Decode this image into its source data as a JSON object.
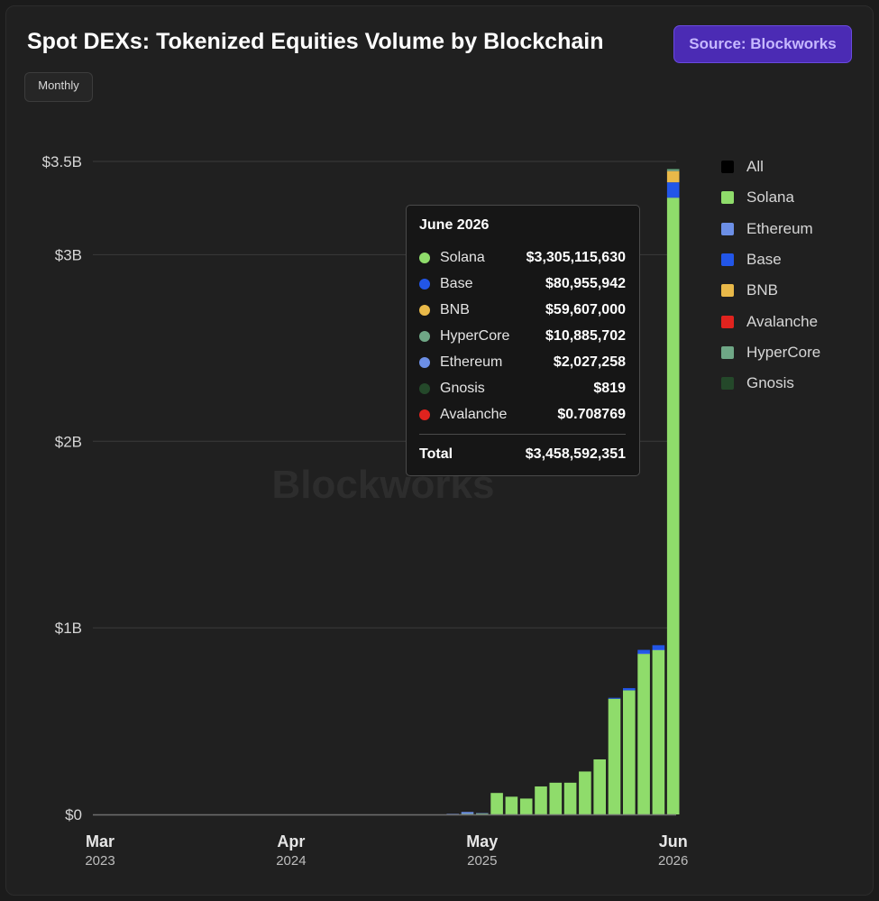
{
  "header": {
    "title": "Spot DEXs: Tokenized Equities Volume by Blockchain",
    "source_label": "Source: Blockworks",
    "interval_label": "Monthly"
  },
  "watermark": "Blockworks",
  "legend": [
    {
      "label": "All",
      "color": "#000000"
    },
    {
      "label": "Solana",
      "color": "#8fdc6b"
    },
    {
      "label": "Ethereum",
      "color": "#6c8fe6"
    },
    {
      "label": "Base",
      "color": "#2256e8"
    },
    {
      "label": "BNB",
      "color": "#e9b949"
    },
    {
      "label": "Avalanche",
      "color": "#e0231e"
    },
    {
      "label": "HyperCore",
      "color": "#6fa786"
    },
    {
      "label": "Gnosis",
      "color": "#24482a"
    }
  ],
  "tooltip": {
    "title": "June 2026",
    "rows": [
      {
        "name": "Solana",
        "value": "$3,305,115,630",
        "color": "#8fdc6b"
      },
      {
        "name": "Base",
        "value": "$80,955,942",
        "color": "#2256e8"
      },
      {
        "name": "BNB",
        "value": "$59,607,000",
        "color": "#e9b949"
      },
      {
        "name": "HyperCore",
        "value": "$10,885,702",
        "color": "#6fa786"
      },
      {
        "name": "Ethereum",
        "value": "$2,027,258",
        "color": "#6c8fe6"
      },
      {
        "name": "Gnosis",
        "value": "$819",
        "color": "#24482a"
      },
      {
        "name": "Avalanche",
        "value": "$0.708769",
        "color": "#e0231e"
      }
    ],
    "total_label": "Total",
    "total_value": "$3,458,592,351"
  },
  "chart_data": {
    "type": "bar",
    "stacked": true,
    "title": "Spot DEXs: Tokenized Equities Volume by Blockchain",
    "xlabel": "",
    "ylabel": "",
    "ylim": [
      0,
      3500000000
    ],
    "y_ticks": [
      0,
      1000000000,
      2000000000,
      3000000000,
      3500000000
    ],
    "y_tick_labels": [
      "$0",
      "$1B",
      "$2B",
      "$3B",
      "$3.5B"
    ],
    "x_ticks": [
      {
        "index": 0,
        "month": "Mar",
        "year": "2023"
      },
      {
        "index": 13,
        "month": "Apr",
        "year": "2024"
      },
      {
        "index": 26,
        "month": "May",
        "year": "2025"
      },
      {
        "index": 39,
        "month": "Jun",
        "year": "2026"
      }
    ],
    "grid": true,
    "legend_position": "right",
    "categories": [
      "Mar 2023",
      "Apr 2023",
      "May 2023",
      "Jun 2023",
      "Jul 2023",
      "Aug 2023",
      "Sep 2023",
      "Oct 2023",
      "Nov 2023",
      "Dec 2023",
      "Jan 2024",
      "Feb 2024",
      "Mar 2024",
      "Apr 2024",
      "May 2024",
      "Jun 2024",
      "Jul 2024",
      "Aug 2024",
      "Sep 2024",
      "Oct 2024",
      "Nov 2024",
      "Dec 2024",
      "Jan 2025",
      "Feb 2025",
      "Mar 2025",
      "Apr 2025",
      "May 2025",
      "Jun 2025",
      "Jul 2025",
      "Aug 2025",
      "Sep 2025",
      "Oct 2025",
      "Nov 2025",
      "Dec 2025",
      "Jan 2026",
      "Feb 2026",
      "Mar 2026",
      "Apr 2026",
      "May 2026",
      "Jun 2026"
    ],
    "series": [
      {
        "name": "Solana",
        "color": "#8fdc6b",
        "values": [
          0,
          0,
          0,
          0,
          0,
          0,
          0,
          0,
          0,
          0,
          0,
          0,
          0,
          0,
          0,
          0,
          0,
          0,
          0,
          0,
          0,
          0,
          0,
          0,
          0,
          3000000,
          4000000,
          115000000,
          95000000,
          85000000,
          150000000,
          170000000,
          170000000,
          230000000,
          295000000,
          620000000,
          665000000,
          860000000,
          880000000,
          3305115630
        ]
      },
      {
        "name": "Ethereum",
        "color": "#6c8fe6",
        "values": [
          0,
          0,
          0,
          0,
          0,
          0,
          0,
          0,
          0,
          0,
          0,
          0,
          0,
          0,
          0,
          0,
          0,
          0,
          0,
          0,
          0,
          0,
          0,
          0,
          3000000,
          10000000,
          2000000,
          0,
          0,
          0,
          0,
          0,
          0,
          0,
          0,
          0,
          0,
          2000000,
          2000000,
          2027258
        ]
      },
      {
        "name": "Base",
        "color": "#2256e8",
        "values": [
          0,
          0,
          0,
          0,
          0,
          0,
          0,
          0,
          0,
          0,
          0,
          0,
          0,
          0,
          0,
          0,
          0,
          0,
          0,
          0,
          0,
          0,
          0,
          0,
          0,
          0,
          0,
          0,
          0,
          0,
          0,
          0,
          0,
          0,
          0,
          5000000,
          12000000,
          20000000,
          25000000,
          80955942
        ]
      },
      {
        "name": "BNB",
        "color": "#e9b949",
        "values": [
          0,
          0,
          0,
          0,
          0,
          0,
          0,
          0,
          0,
          0,
          0,
          0,
          0,
          0,
          0,
          0,
          0,
          0,
          0,
          0,
          0,
          0,
          0,
          0,
          0,
          0,
          0,
          0,
          0,
          0,
          0,
          0,
          0,
          0,
          0,
          0,
          0,
          0,
          0,
          59607000
        ]
      },
      {
        "name": "Avalanche",
        "color": "#e0231e",
        "values": [
          0,
          0,
          0,
          0,
          0,
          0,
          0,
          0,
          0,
          0,
          0,
          0,
          0,
          0,
          0,
          0,
          0,
          0,
          0,
          0,
          0,
          0,
          0,
          0,
          0,
          0,
          0,
          0,
          0,
          0,
          0,
          0,
          0,
          0,
          0,
          0,
          0,
          0,
          0,
          0.708769
        ]
      },
      {
        "name": "HyperCore",
        "color": "#6fa786",
        "values": [
          0,
          0,
          0,
          0,
          0,
          0,
          0,
          0,
          0,
          0,
          0,
          0,
          0,
          0,
          0,
          0,
          0,
          0,
          0,
          0,
          0,
          0,
          0,
          0,
          0,
          0,
          0,
          0,
          0,
          0,
          0,
          0,
          0,
          0,
          0,
          0,
          0,
          0,
          0,
          10885702
        ]
      },
      {
        "name": "Gnosis",
        "color": "#24482a",
        "values": [
          0,
          0,
          0,
          0,
          0,
          0,
          0,
          0,
          0,
          0,
          0,
          0,
          0,
          0,
          0,
          0,
          0,
          0,
          0,
          0,
          0,
          0,
          0,
          0,
          0,
          0,
          0,
          0,
          0,
          0,
          0,
          0,
          0,
          0,
          0,
          0,
          0,
          0,
          0,
          819
        ]
      }
    ]
  }
}
